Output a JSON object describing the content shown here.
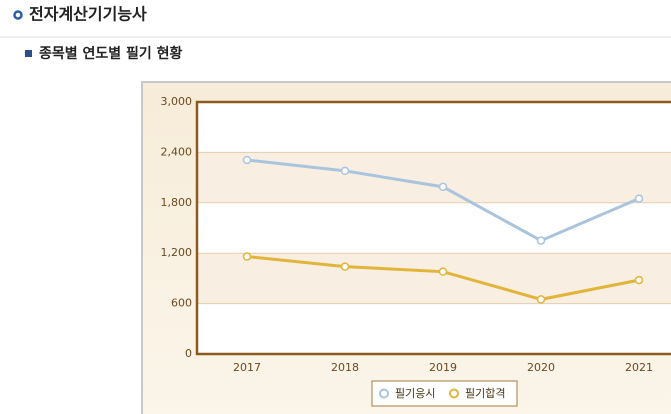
{
  "header": {
    "title": "전자계산기기능사",
    "subtitle": "종목별 연도별 필기 현황"
  },
  "chart_data": {
    "type": "line",
    "categories": [
      "2017",
      "2018",
      "2019",
      "2020",
      "2021"
    ],
    "series": [
      {
        "name": "필기응시",
        "color": "#a9c4dc",
        "values": [
          2310,
          2180,
          1990,
          1350,
          1850
        ]
      },
      {
        "name": "필기합격",
        "color": "#e2b43a",
        "values": [
          1160,
          1040,
          980,
          650,
          880
        ]
      }
    ],
    "ylim": [
      0,
      3000
    ],
    "yticks": [
      0,
      600,
      {
        "value": 1200,
        "label": "1,200"
      },
      {
        "value": 1800,
        "label": "1,800"
      },
      {
        "value": 2400,
        "label": "2,400"
      },
      {
        "value": 3000,
        "label": "3,000"
      }
    ],
    "grid": true,
    "legend": "bottom"
  }
}
